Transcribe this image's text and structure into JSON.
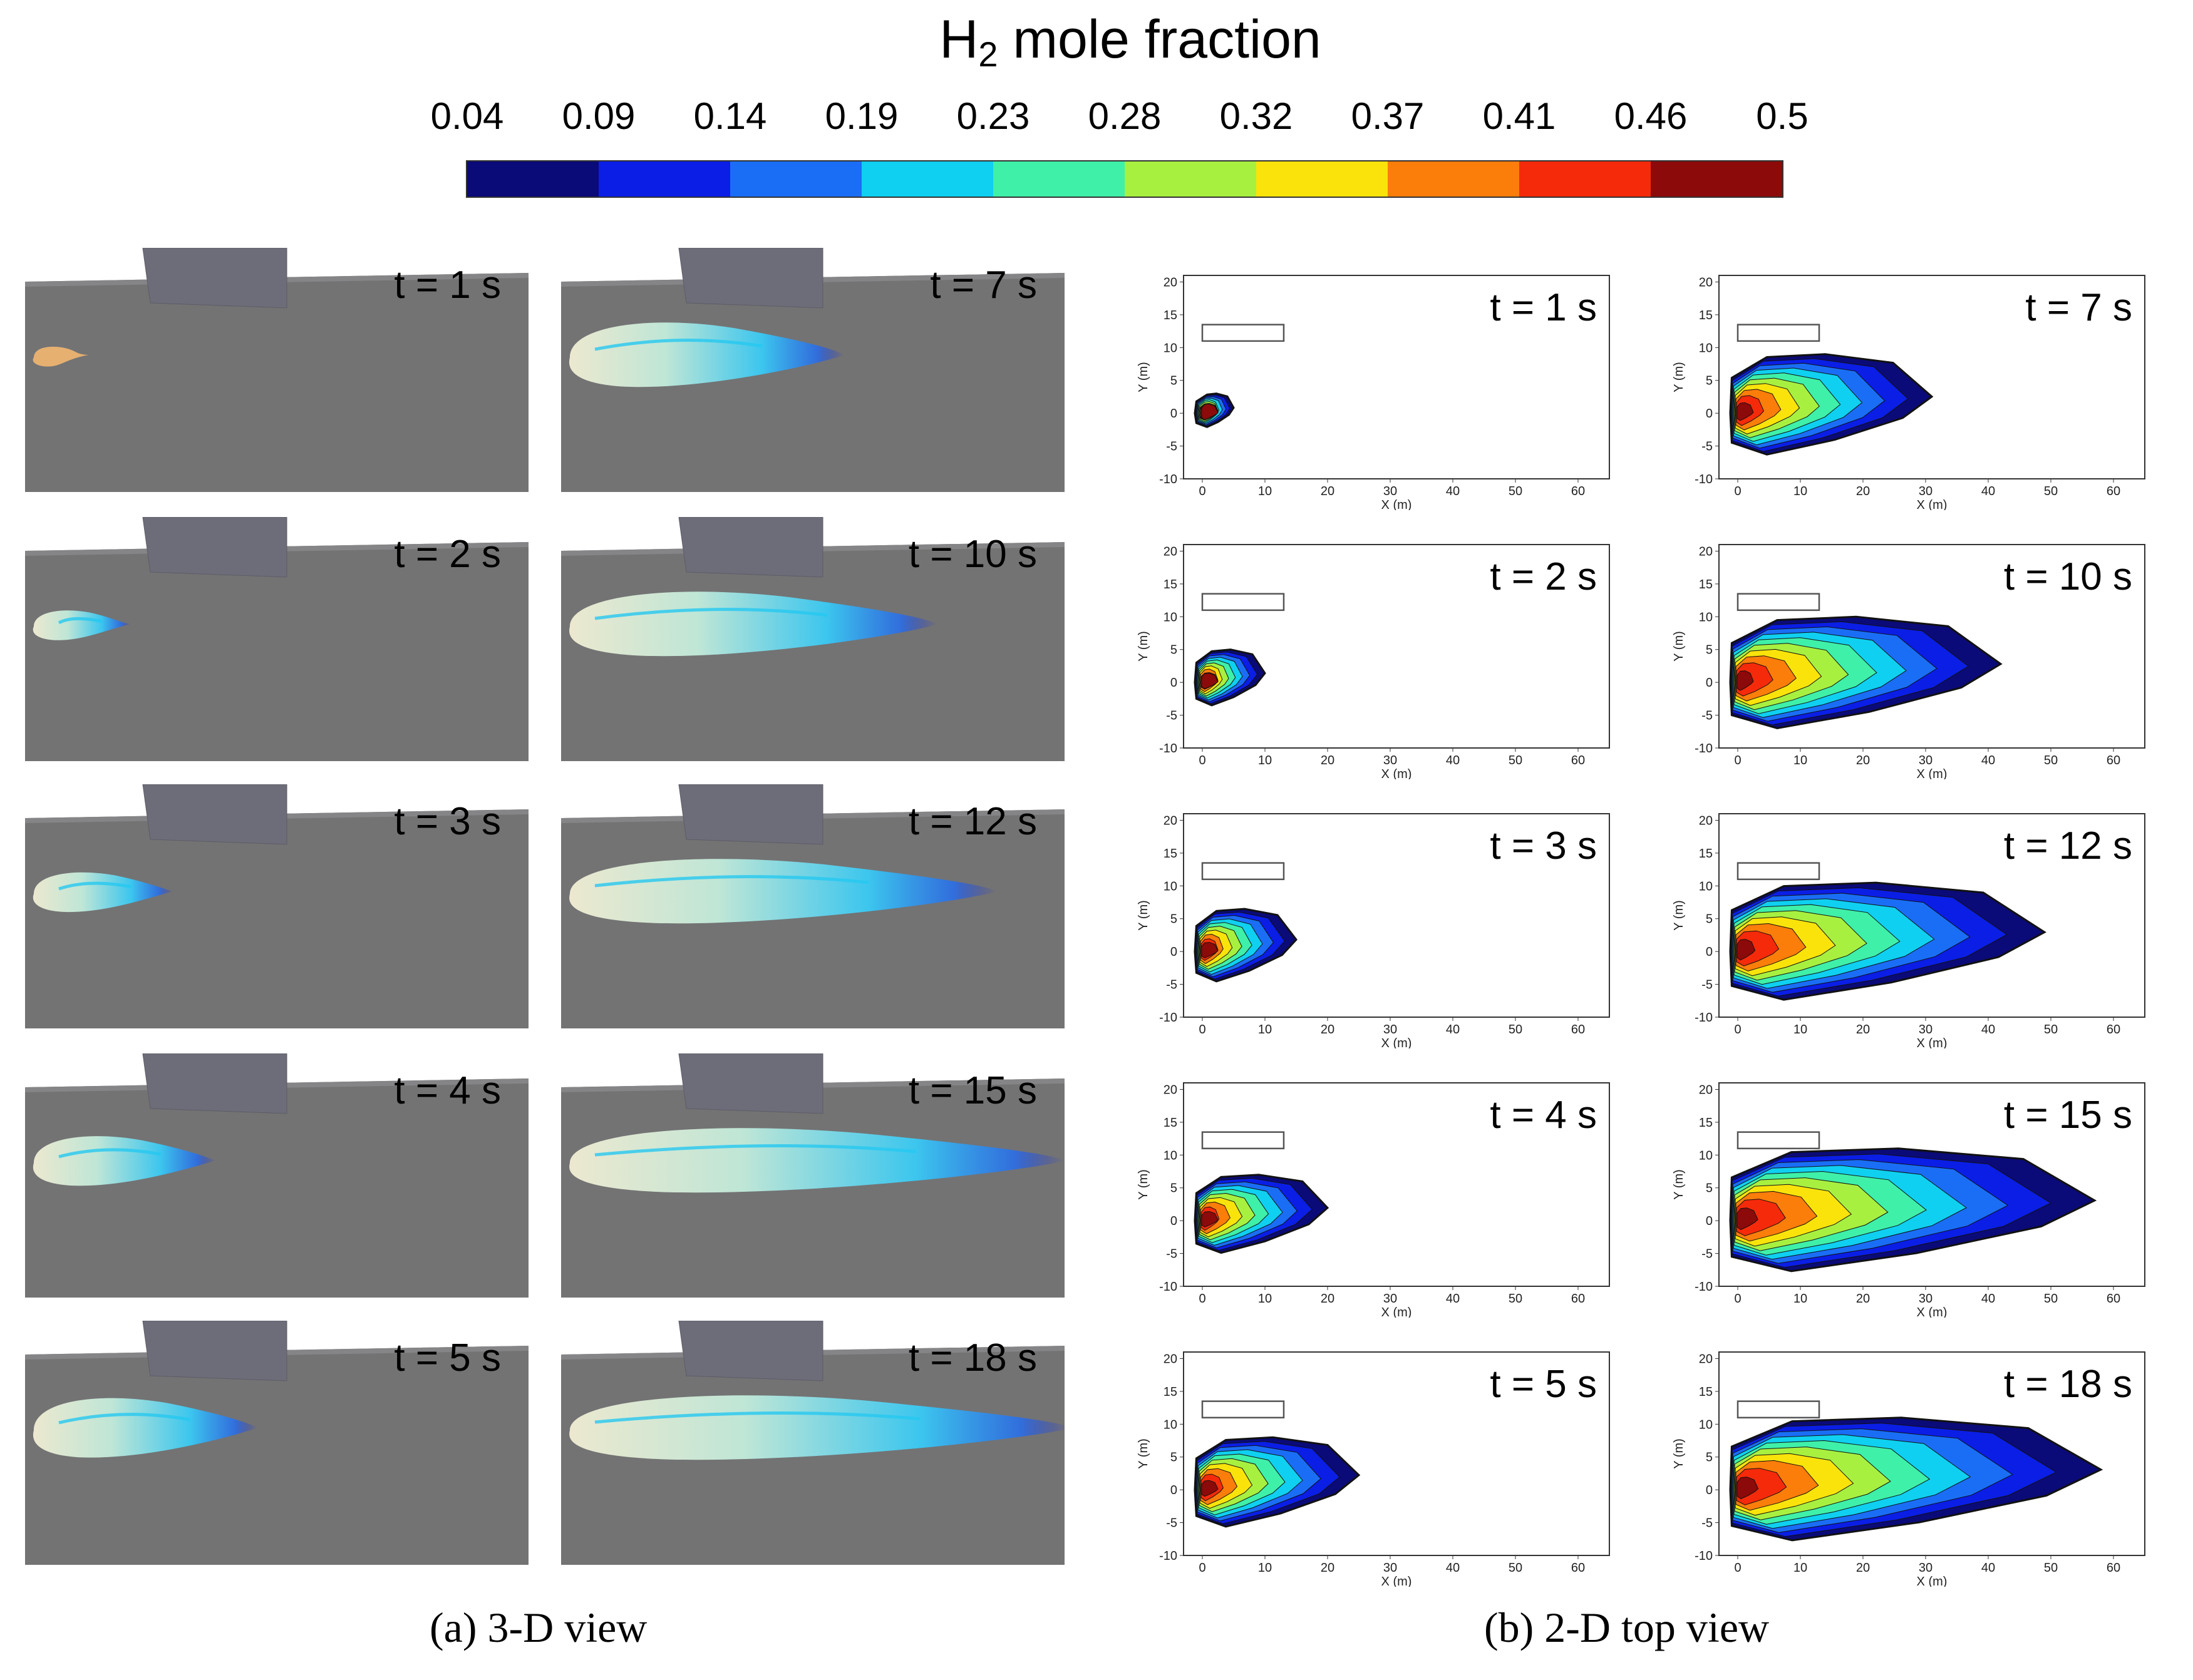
{
  "figure": {
    "title_main": "H",
    "title_sub": "2",
    "title_rest": " mole fraction",
    "colorbar": {
      "labels": [
        "0.04",
        "0.09",
        "0.14",
        "0.19",
        "0.23",
        "0.28",
        "0.32",
        "0.37",
        "0.41",
        "0.46",
        "0.5"
      ],
      "colors": [
        "#0a0a78",
        "#0a1ee6",
        "#1a6ef5",
        "#0fd0f0",
        "#3ff0a8",
        "#a8f040",
        "#fae30a",
        "#fb7d0a",
        "#f52a0a",
        "#8c0a0a"
      ]
    },
    "caption_a": "(a) 3-D view",
    "caption_b": "(b) 2-D top view",
    "axes": {
      "xlabel": "X (m)",
      "ylabel": "Y (m)",
      "xticks": [
        "0",
        "10",
        "20",
        "30",
        "40",
        "50",
        "60"
      ],
      "yticks": [
        "20",
        "15",
        "10",
        "5",
        "0",
        "-5",
        "-10"
      ],
      "xlim": [
        -3,
        65
      ],
      "ylim": [
        -10,
        21
      ]
    },
    "times": [
      "t = 1 s",
      "t = 2 s",
      "t = 3 s",
      "t = 4 s",
      "t = 5 s",
      "t = 7 s",
      "t = 10 s",
      "t = 12 s",
      "t = 15 s",
      "t = 18 s"
    ],
    "plume_extent_m": [
      5,
      10,
      15,
      20,
      25,
      31,
      42,
      49,
      57,
      58
    ],
    "plume_halfwidth_m": [
      3,
      5,
      6.5,
      7,
      8,
      9,
      10,
      10.5,
      11,
      11
    ]
  }
}
